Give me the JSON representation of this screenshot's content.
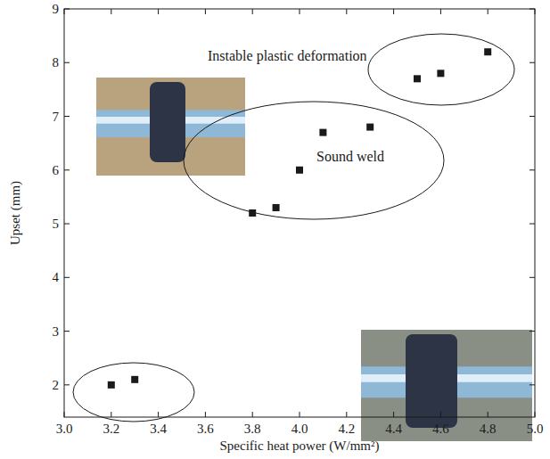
{
  "chart_data": {
    "type": "scatter",
    "x_label": "Specific heat power (W/mm²)",
    "y_label": "Upset (mm)",
    "x": [
      3.2,
      3.3,
      3.8,
      3.9,
      4.0,
      4.1,
      4.3,
      4.5,
      4.6,
      4.8
    ],
    "values": [
      2.0,
      2.1,
      5.2,
      5.3,
      6.0,
      6.7,
      6.8,
      7.7,
      7.8,
      8.2
    ],
    "color": "#1a1a1a",
    "marker": "square",
    "xlim": [
      3.0,
      5.0
    ],
    "xticks": [
      {
        "value": 3.0,
        "label": "3.0"
      },
      3.2,
      3.4,
      3.6,
      3.8,
      {
        "value": 4.0,
        "label": "4.0"
      },
      4.2,
      4.4,
      4.6,
      4.8,
      {
        "value": 5.0,
        "label": "5.0"
      }
    ],
    "ylim": [
      1.4,
      9
    ],
    "yticks": [
      2,
      3,
      4,
      5,
      6,
      7,
      8,
      9
    ],
    "grid": false,
    "annotations": [
      "Instable plastic deformation",
      "Sound weld"
    ]
  }
}
